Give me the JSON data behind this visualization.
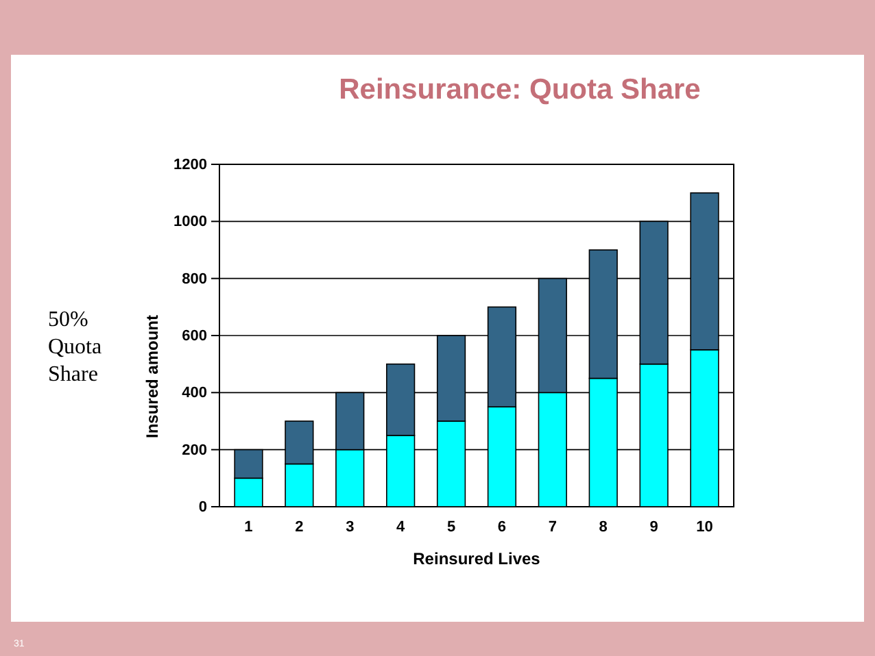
{
  "chart_data": {
    "type": "bar",
    "title": "Reinsurance: Quota Share",
    "xlabel": "Reinsured Lives",
    "ylabel": "Insured amount",
    "categories": [
      "1",
      "2",
      "3",
      "4",
      "5",
      "6",
      "7",
      "8",
      "9",
      "10"
    ],
    "stacked": true,
    "series": [
      {
        "color": "#00ffff",
        "values": [
          100,
          150,
          200,
          250,
          300,
          350,
          400,
          450,
          500,
          550
        ]
      },
      {
        "color": "#336688",
        "values": [
          100,
          150,
          200,
          250,
          300,
          350,
          400,
          450,
          500,
          550
        ]
      }
    ],
    "ylim": [
      0,
      1200
    ],
    "yticks": [
      0,
      200,
      400,
      600,
      800,
      1000,
      1200
    ],
    "grid": "y",
    "annotations": [
      "50% Quota Share",
      "31"
    ]
  }
}
